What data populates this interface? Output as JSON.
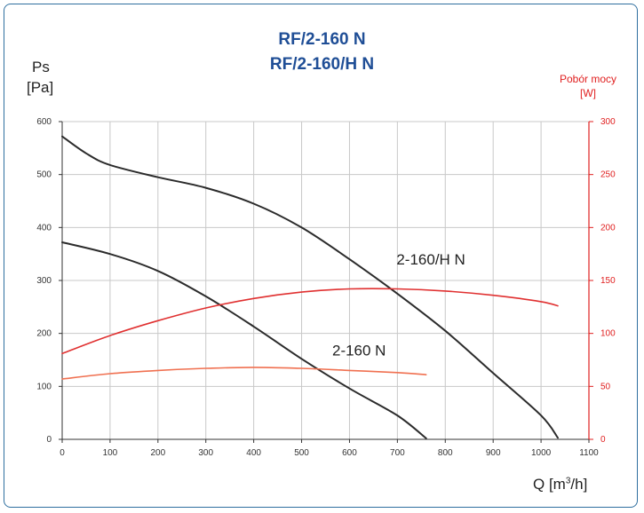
{
  "chart_data": {
    "type": "line",
    "title": [
      "RF/2-160 N",
      "RF/2-160/H N"
    ],
    "y_left_label": [
      "Ps",
      "[Pa]"
    ],
    "y_right_label": [
      "Pobór mocy",
      "[W]"
    ],
    "x_label": "Q [m³/h]",
    "xlim": [
      0,
      1100
    ],
    "xticks": [
      0,
      100,
      200,
      300,
      400,
      500,
      600,
      700,
      800,
      900,
      1000,
      1100
    ],
    "ylim_left": [
      0,
      600
    ],
    "yticks_left": [
      0,
      100,
      200,
      300,
      400,
      500,
      600
    ],
    "ylim_right": [
      0,
      300
    ],
    "yticks_right": [
      0,
      50,
      100,
      150,
      200,
      250,
      300
    ],
    "grid": true,
    "series": [
      {
        "name": "2-160/H N",
        "axis": "left",
        "color": "#2b2b2b",
        "points": [
          [
            0,
            572
          ],
          [
            50,
            540
          ],
          [
            100,
            518
          ],
          [
            200,
            495
          ],
          [
            300,
            475
          ],
          [
            400,
            445
          ],
          [
            500,
            400
          ],
          [
            600,
            340
          ],
          [
            700,
            275
          ],
          [
            800,
            205
          ],
          [
            900,
            125
          ],
          [
            1000,
            45
          ],
          [
            1035,
            3
          ]
        ]
      },
      {
        "name": "2-160 N",
        "axis": "left",
        "color": "#2b2b2b",
        "points": [
          [
            0,
            372
          ],
          [
            100,
            350
          ],
          [
            200,
            318
          ],
          [
            300,
            270
          ],
          [
            400,
            213
          ],
          [
            500,
            152
          ],
          [
            600,
            96
          ],
          [
            700,
            45
          ],
          [
            760,
            2
          ]
        ]
      },
      {
        "name": "",
        "axis": "right",
        "color": "#e03030",
        "points": [
          [
            0,
            81
          ],
          [
            100,
            98
          ],
          [
            200,
            112
          ],
          [
            300,
            124
          ],
          [
            400,
            133
          ],
          [
            500,
            139
          ],
          [
            600,
            142
          ],
          [
            700,
            142
          ],
          [
            800,
            140
          ],
          [
            900,
            136
          ],
          [
            1000,
            130
          ],
          [
            1035,
            126
          ]
        ]
      },
      {
        "name": "",
        "axis": "right",
        "color": "#f07050",
        "points": [
          [
            0,
            57
          ],
          [
            100,
            62
          ],
          [
            200,
            65
          ],
          [
            300,
            67
          ],
          [
            400,
            68
          ],
          [
            500,
            67
          ],
          [
            600,
            65
          ],
          [
            700,
            63
          ],
          [
            760,
            61
          ]
        ]
      }
    ],
    "annotations": [
      {
        "text": "2-160/H N",
        "x": 770,
        "y": 330,
        "axis": "left"
      },
      {
        "text": "2-160 N",
        "x": 620,
        "y": 158,
        "axis": "left"
      }
    ]
  }
}
